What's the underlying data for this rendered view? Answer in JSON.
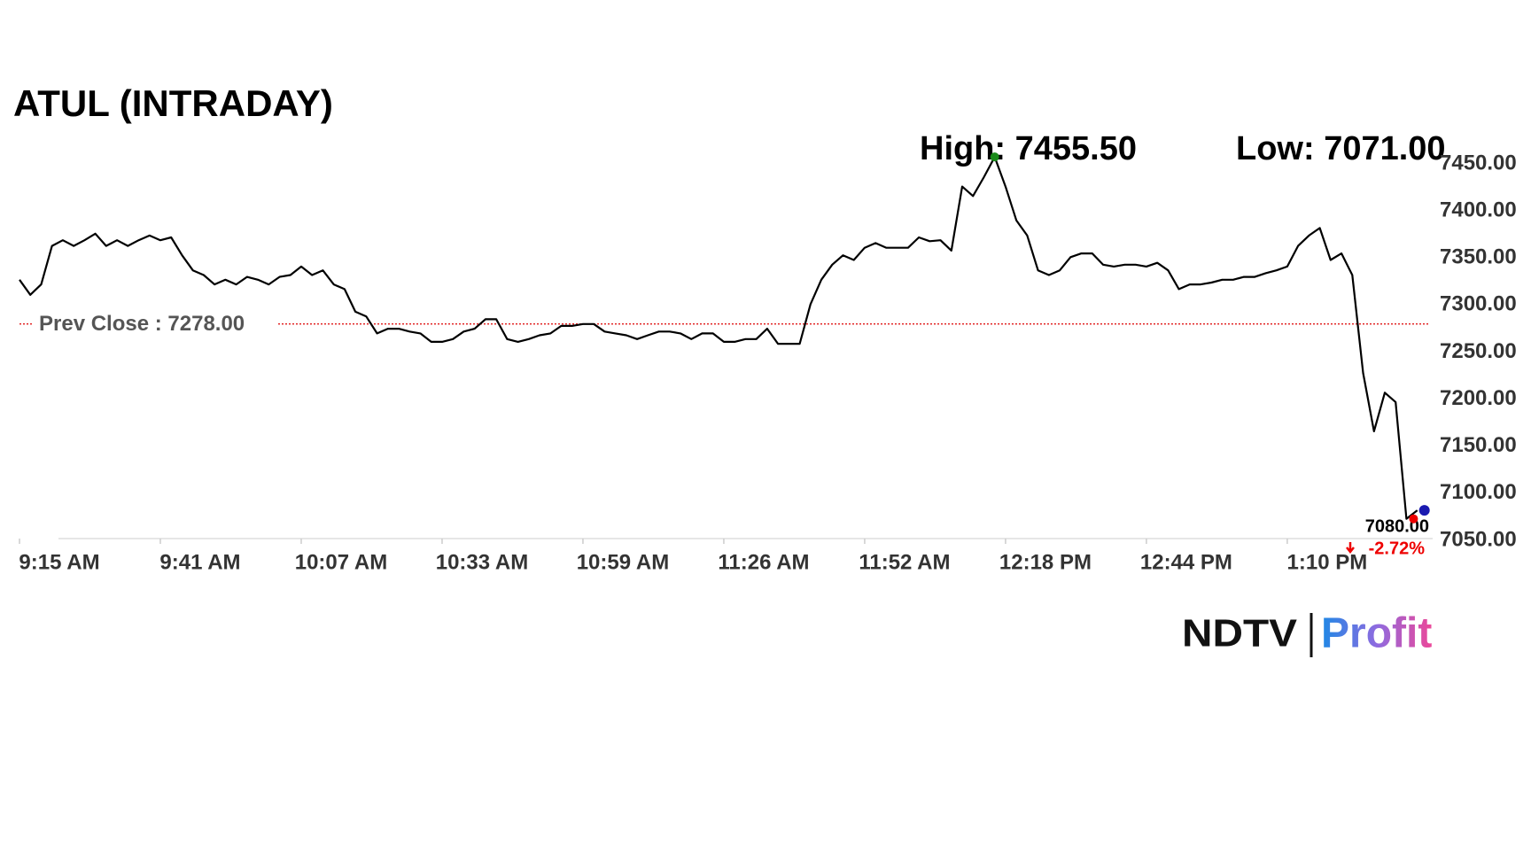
{
  "chart_data": {
    "type": "line",
    "title": "ATUL (INTRADAY)",
    "high_label": "High: 7455.50",
    "low_label": "Low: 7071.00",
    "prev_close": {
      "value": 7278,
      "label": "Prev Close : 7278.00"
    },
    "last_label": "7080.00",
    "change_label": "-2.72%",
    "color": "#000000",
    "categories": [
      "9:15 AM",
      null,
      null,
      null,
      null,
      null,
      null,
      null,
      null,
      null,
      null,
      null,
      null,
      "9:41 AM",
      null,
      null,
      null,
      null,
      null,
      null,
      null,
      null,
      null,
      null,
      null,
      null,
      "10:07 AM",
      null,
      null,
      null,
      null,
      null,
      null,
      null,
      null,
      null,
      null,
      null,
      null,
      "10:33 AM",
      null,
      null,
      null,
      null,
      null,
      null,
      null,
      null,
      null,
      null,
      null,
      null,
      "10:59 AM",
      null,
      null,
      null,
      null,
      null,
      null,
      null,
      null,
      null,
      null,
      null,
      null,
      "11:26 AM",
      null,
      null,
      null,
      null,
      null,
      null,
      null,
      null,
      null,
      null,
      null,
      null,
      "11:52 AM",
      null,
      null,
      null,
      null,
      null,
      null,
      null,
      null,
      null,
      null,
      null,
      null,
      "12:18 PM",
      null,
      null,
      null,
      null,
      null,
      null,
      null,
      null,
      null,
      null,
      null,
      null,
      "12:44 PM",
      null,
      null,
      null,
      null,
      null,
      null,
      null,
      null,
      null,
      null,
      null,
      null,
      "1:10 PM",
      null,
      null,
      null,
      null,
      null,
      null,
      null,
      null,
      null,
      null,
      null,
      null
    ],
    "values": [
      7325,
      7309,
      7320,
      7361,
      7367,
      7361,
      7367,
      7374,
      7361,
      7367,
      7361,
      7367,
      7372,
      7367,
      7370,
      7351,
      7335,
      7330,
      7320,
      7325,
      7320,
      7328,
      7325,
      7320,
      7328,
      7330,
      7339,
      7330,
      7335,
      7320,
      7315,
      7291,
      7286,
      7268,
      7273,
      7273,
      7270,
      7268,
      7259,
      7259,
      7262,
      7270,
      7273,
      7283,
      7283,
      7262,
      7259,
      7262,
      7266,
      7268,
      7276,
      7276,
      7278,
      7278,
      7270,
      7268,
      7266,
      7262,
      7266,
      7270,
      7270,
      7268,
      7262,
      7268,
      7268,
      7259,
      7259,
      7262,
      7262,
      7273,
      7257,
      7257,
      7257,
      7299,
      7325,
      7341,
      7351,
      7346,
      7359,
      7364,
      7359,
      7359,
      7359,
      7370,
      7366,
      7367,
      7356,
      7424,
      7414,
      7434,
      7455.5,
      7424,
      7388,
      7372,
      7335,
      7330,
      7335,
      7349,
      7353,
      7353,
      7341,
      7339,
      7341,
      7341,
      7339,
      7343,
      7335,
      7315,
      7320,
      7320,
      7322,
      7325,
      7325,
      7328,
      7328,
      7332,
      7335,
      7339,
      7361,
      7372,
      7380,
      7346,
      7353,
      7330,
      7226,
      7164,
      7205,
      7195,
      7071,
      7080
    ],
    "ylim": [
      7050,
      7450
    ],
    "yticks": [
      {
        "value": 7450,
        "label": "7450.00"
      },
      {
        "value": 7400,
        "label": "7400.00"
      },
      {
        "value": 7350,
        "label": "7350.00"
      },
      {
        "value": 7300,
        "label": "7300.00"
      },
      {
        "value": 7250,
        "label": "7250.00"
      },
      {
        "value": 7200,
        "label": "7200.00"
      },
      {
        "value": 7150,
        "label": "7150.00"
      },
      {
        "value": 7100,
        "label": "7100.00"
      },
      {
        "value": 7050,
        "label": "7050.00"
      }
    ]
  },
  "brand": {
    "name": "NDTV",
    "product": "Profit"
  }
}
